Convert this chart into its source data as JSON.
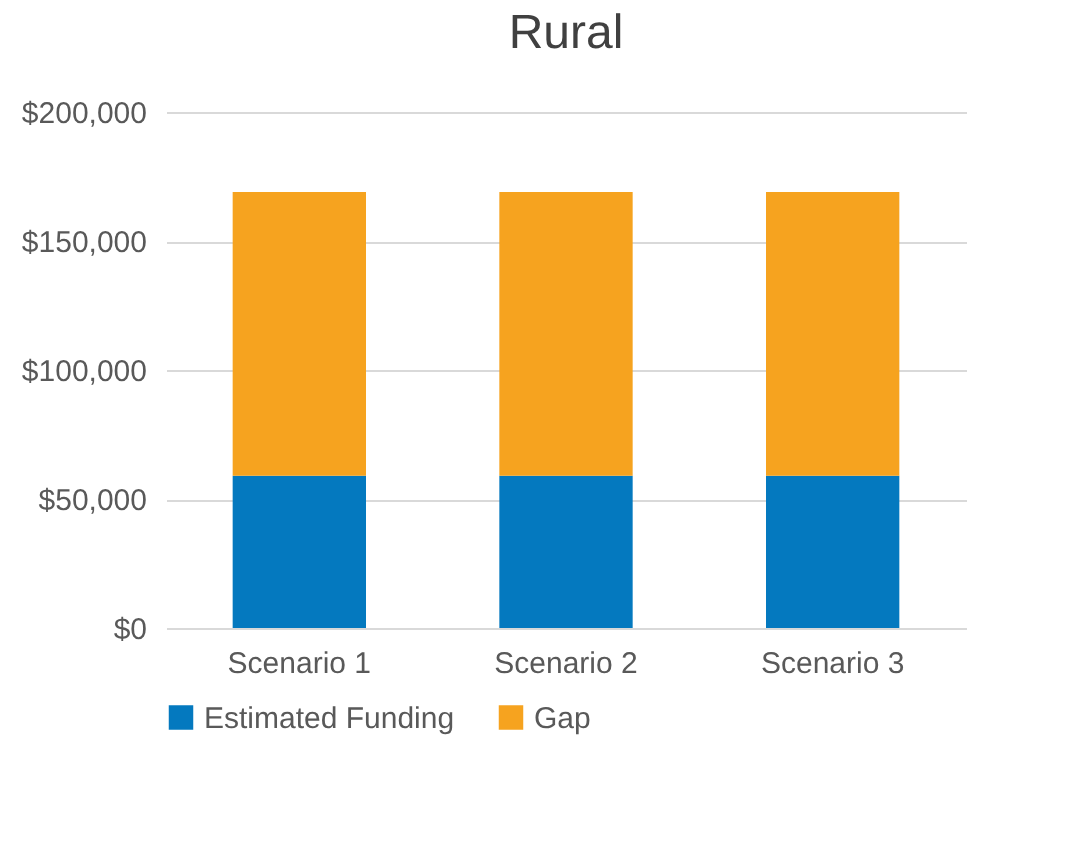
{
  "chart_data": {
    "type": "bar",
    "title": "Rural",
    "categories": [
      "Scenario 1",
      "Scenario 2",
      "Scenario 3"
    ],
    "stacked": true,
    "series": [
      {
        "name": "Estimated Funding",
        "color": "#0479bf",
        "values": [
          59000,
          59000,
          59000
        ]
      },
      {
        "name": "Gap",
        "color": "#f6a31f",
        "values": [
          110000,
          110000,
          110000
        ]
      }
    ],
    "ylim": [
      0,
      200000
    ],
    "yticks": [
      {
        "value": 0,
        "label": "$0"
      },
      {
        "value": 50000,
        "label": "$50,000"
      },
      {
        "value": 100000,
        "label": "$100,000"
      },
      {
        "value": 150000,
        "label": "$150,000"
      },
      {
        "value": 200000,
        "label": "$200,000"
      }
    ],
    "grid": "y",
    "legend": "bottom"
  }
}
